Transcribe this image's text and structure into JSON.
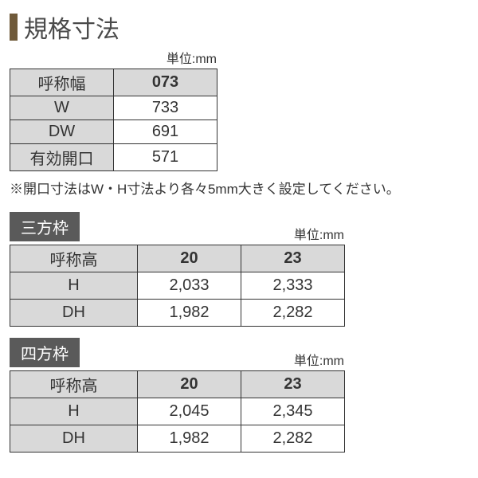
{
  "title": "規格寸法",
  "unit_label": "単位:mm",
  "table1": {
    "rows": [
      {
        "label": "呼称幅",
        "value": "073",
        "bold": true
      },
      {
        "label": "W",
        "value": "733",
        "bold": false
      },
      {
        "label": "DW",
        "value": "691",
        "bold": false
      },
      {
        "label": "有効開口",
        "value": "571",
        "bold": false
      }
    ]
  },
  "note": "※開口寸法はW・H寸法より各々5mm大きく設定してください。",
  "sections": [
    {
      "tag": "三方枠",
      "header_label": "呼称高",
      "columns": [
        "20",
        "23"
      ],
      "rows": [
        {
          "label": "H",
          "values": [
            "2,033",
            "2,333"
          ]
        },
        {
          "label": "DH",
          "values": [
            "1,982",
            "2,282"
          ]
        }
      ]
    },
    {
      "tag": "四方枠",
      "header_label": "呼称高",
      "columns": [
        "20",
        "23"
      ],
      "rows": [
        {
          "label": "H",
          "values": [
            "2,045",
            "2,345"
          ]
        },
        {
          "label": "DH",
          "values": [
            "1,982",
            "2,282"
          ]
        }
      ]
    }
  ],
  "colors": {
    "title_bar": "#6f5a3a",
    "header_bg": "#d9d9d9",
    "section_tag_bg": "#5a5a5a",
    "border": "#333333",
    "text": "#333333",
    "background": "#ffffff"
  }
}
